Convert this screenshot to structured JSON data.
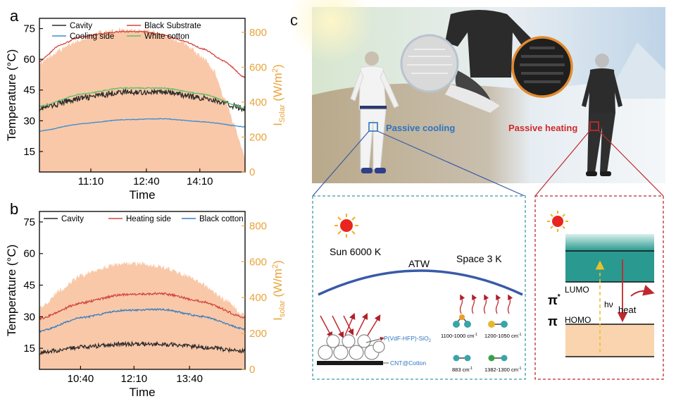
{
  "panel_labels": {
    "a": "a",
    "b": "b",
    "c": "c"
  },
  "colors": {
    "cavity": "#2b2b2b",
    "black_substrate": "#d2473f",
    "cooling_side": "#3a8fd1",
    "white_cotton": "#5cbf6a",
    "heating_side": "#d2473f",
    "black_cotton": "#3a7fc1",
    "solar_fill": "#f9c8a8",
    "solar_axis": "#e8a33a",
    "cool_box": "#3a9aa8",
    "heat_box": "#c0282e",
    "lumo_band": "#2a9a90",
    "homo_band": "#f9d4ae",
    "atw_arc": "#3a5aa8"
  },
  "chart_data": [
    {
      "panel": "a",
      "type": "line",
      "xlabel": "Time",
      "ylabel": "Temperature (°C)",
      "y2label_main": "I",
      "y2label_sub": "Solar",
      "y2label_unit": " (W/m",
      "y2label_sup": "2",
      "y2label_close": ")",
      "xlim": [
        0,
        1
      ],
      "ylim": [
        5,
        80
      ],
      "y2lim": [
        0,
        880
      ],
      "yticks": [
        15,
        30,
        45,
        60,
        75
      ],
      "y2ticks": [
        0,
        200,
        400,
        600,
        800
      ],
      "xticks": [
        {
          "x": 0.25,
          "label": "11:10"
        },
        {
          "x": 0.52,
          "label": "12:40"
        },
        {
          "x": 0.78,
          "label": "14:10"
        }
      ],
      "solar_x": [
        0,
        0.1,
        0.2,
        0.3,
        0.4,
        0.5,
        0.6,
        0.7,
        0.8,
        0.85,
        0.9,
        0.95,
        1.0
      ],
      "solar_values": [
        620,
        700,
        760,
        800,
        815,
        815,
        790,
        740,
        650,
        580,
        420,
        260,
        90
      ],
      "series": [
        {
          "name": "Cavity",
          "color_key": "cavity",
          "noise": 1.4,
          "x": [
            0,
            0.2,
            0.4,
            0.6,
            0.8,
            1.0
          ],
          "values": [
            36,
            41,
            44,
            44,
            41,
            36
          ]
        },
        {
          "name": "Black Substrate",
          "color_key": "black_substrate",
          "noise": 0.3,
          "x": [
            0,
            0.1,
            0.2,
            0.3,
            0.4,
            0.5,
            0.6,
            0.7,
            0.8,
            0.9,
            1.0
          ],
          "values": [
            59,
            67,
            71,
            72.5,
            73.5,
            73.5,
            72,
            69,
            65,
            59,
            51
          ]
        },
        {
          "name": "Cooling side",
          "color_key": "cooling_side",
          "noise": 0.15,
          "x": [
            0,
            0.2,
            0.4,
            0.6,
            0.8,
            1.0
          ],
          "values": [
            25,
            28.5,
            30.5,
            31,
            29.5,
            27
          ]
        },
        {
          "name": "White cotton",
          "color_key": "white_cotton",
          "noise": 0.25,
          "x": [
            0,
            0.2,
            0.4,
            0.6,
            0.8,
            1.0
          ],
          "values": [
            37,
            43,
            46,
            46,
            43,
            36
          ]
        }
      ],
      "legend": [
        {
          "name": "Cavity",
          "color_key": "cavity"
        },
        {
          "name": "Black Substrate",
          "color_key": "black_substrate"
        },
        {
          "name": "Cooling side",
          "color_key": "cooling_side"
        },
        {
          "name": "White cotton",
          "color_key": "white_cotton"
        }
      ]
    },
    {
      "panel": "b",
      "type": "line",
      "xlabel": "Time",
      "ylabel": "Temperature (°C)",
      "y2label_main": "I",
      "y2label_sub": "solar",
      "y2label_unit": " (W/m",
      "y2label_sup": "2",
      "y2label_close": ")",
      "xlim": [
        0,
        1
      ],
      "ylim": [
        5,
        80
      ],
      "y2lim": [
        0,
        880
      ],
      "yticks": [
        15,
        30,
        45,
        60,
        75
      ],
      "y2ticks": [
        0,
        200,
        400,
        600,
        800
      ],
      "xticks": [
        {
          "x": 0.2,
          "label": "10:40"
        },
        {
          "x": 0.46,
          "label": "12:10"
        },
        {
          "x": 0.73,
          "label": "13:40"
        }
      ],
      "solar_x": [
        0,
        0.1,
        0.2,
        0.3,
        0.4,
        0.5,
        0.6,
        0.7,
        0.8,
        0.9,
        1.0
      ],
      "solar_values": [
        340,
        440,
        520,
        565,
        590,
        590,
        570,
        530,
        470,
        390,
        300
      ],
      "series": [
        {
          "name": "Cavity",
          "color_key": "cavity",
          "noise": 1.0,
          "x": [
            0,
            0.2,
            0.4,
            0.6,
            0.8,
            1.0
          ],
          "values": [
            13,
            15.5,
            17,
            17,
            15.5,
            13.5
          ]
        },
        {
          "name": "Heating side",
          "color_key": "heating_side",
          "noise": 0.5,
          "x": [
            0,
            0.2,
            0.4,
            0.6,
            0.8,
            1.0
          ],
          "values": [
            29,
            36.5,
            40.5,
            41,
            37,
            29.5
          ]
        },
        {
          "name": "Black cotton",
          "color_key": "black_cotton",
          "noise": 0.4,
          "x": [
            0,
            0.2,
            0.4,
            0.6,
            0.8,
            1.0
          ],
          "values": [
            23,
            29.5,
            33,
            33.5,
            30,
            24
          ]
        }
      ],
      "legend": [
        {
          "name": "Cavity",
          "color_key": "cavity"
        },
        {
          "name": "Heating side",
          "color_key": "heating_side"
        },
        {
          "name": "Black cotton",
          "color_key": "black_cotton"
        }
      ]
    }
  ],
  "panel_c": {
    "passive_cooling_label": "Passive cooling",
    "passive_heating_label": "Passive heating",
    "cooling_box": {
      "sun_label": "Sun 6000 K",
      "atw_label": "ATW",
      "space_label": "Space 3 K",
      "coating_label": "P(VdF-HFP)-SiO",
      "coating_sub": "2",
      "fabric_label": "CNT@Cotton",
      "bond_1": "1100-1000 cm",
      "bond_2": "1200-1050 cm",
      "bond_3": "883 cm",
      "bond_4": "1382-1300 cm",
      "bond_sup": "-1"
    },
    "heating_box": {
      "pi_star": "π",
      "pi_star_sup": "*",
      "lumo": "LUMO",
      "pi": "π",
      "homo": "HOMO",
      "hv": "hν",
      "heat": "heat"
    }
  }
}
